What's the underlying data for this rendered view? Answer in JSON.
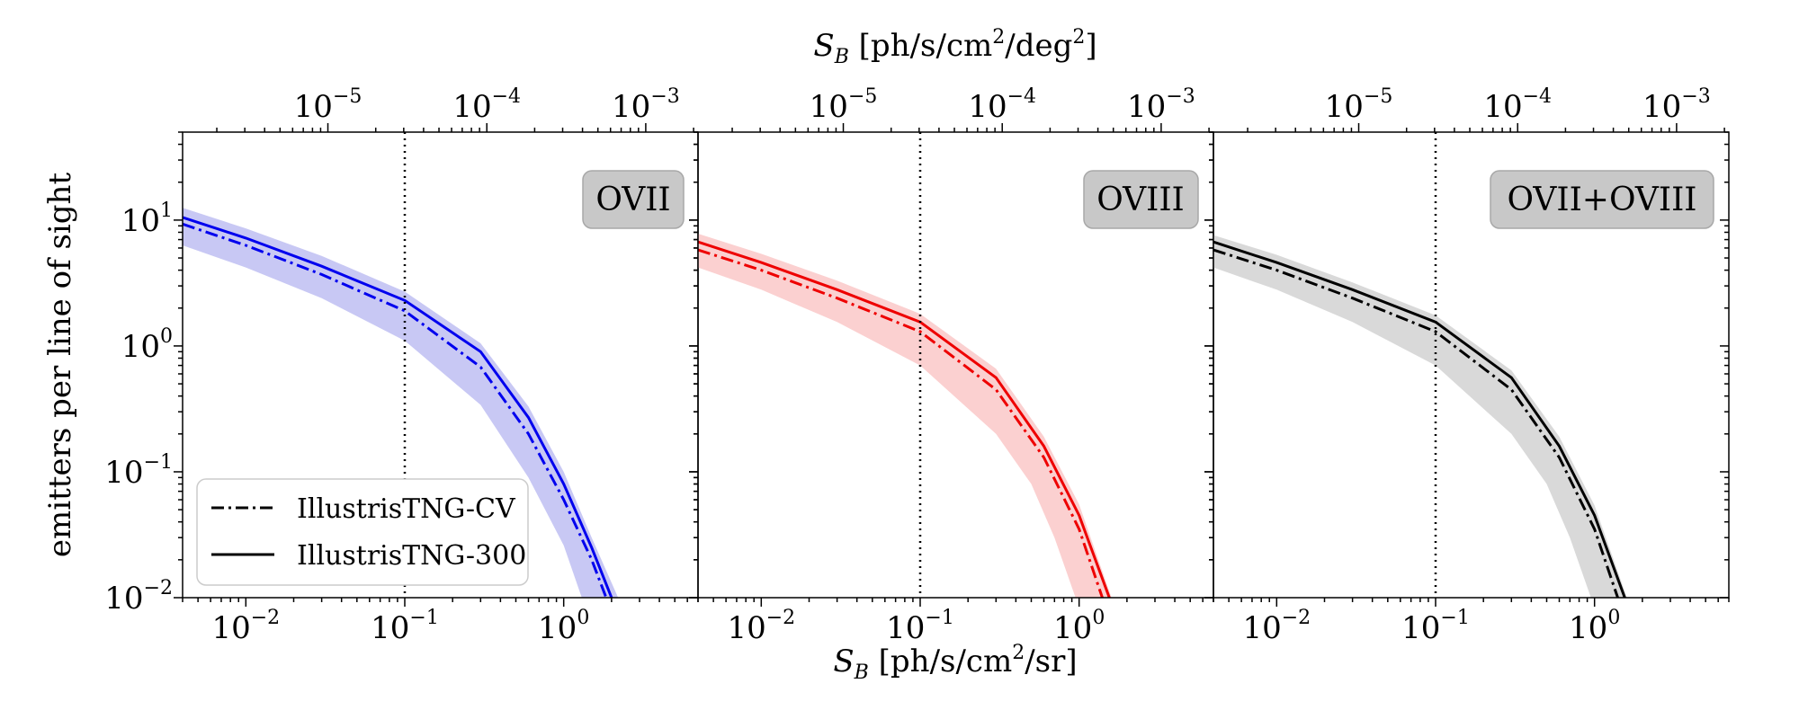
{
  "chart_data": {
    "type": "line",
    "y_axis": {
      "label": "emitters per line of sight",
      "scale": "log",
      "ylim": [
        0.01,
        50
      ],
      "ticks": [
        {
          "base": "10",
          "exp": "1",
          "value": 10
        },
        {
          "base": "10",
          "exp": "0",
          "value": 1
        },
        {
          "base": "10",
          "exp": "−1",
          "value": 0.1
        },
        {
          "base": "10",
          "exp": "−2",
          "value": 0.01
        }
      ]
    },
    "x_axis_bottom": {
      "label_main": "S",
      "label_sub": "B",
      "label_unit_pre": " [ph/s/cm",
      "label_unit_sup": "2",
      "label_unit_post": "/sr]",
      "scale": "log",
      "xlim": [
        0.004,
        7
      ],
      "ticks": [
        {
          "base": "10",
          "exp": "−2",
          "value": 0.01
        },
        {
          "base": "10",
          "exp": "−1",
          "value": 0.1
        },
        {
          "base": "10",
          "exp": "0",
          "value": 1
        }
      ]
    },
    "x_axis_top": {
      "label_main": "S",
      "label_sub": "B",
      "label_unit_pre": " [ph/s/cm",
      "label_unit_sup": "2",
      "label_unit_mid": "/deg",
      "label_unit_sup2": "2",
      "label_unit_post": "]",
      "scale": "log",
      "conversion_factor_per_sr_to_per_deg2": 0.0003046,
      "ticks": [
        {
          "base": "10",
          "exp": "−5",
          "value": 1e-05
        },
        {
          "base": "10",
          "exp": "−4",
          "value": 0.0001
        },
        {
          "base": "10",
          "exp": "−3",
          "value": 0.001
        }
      ]
    },
    "vertical_line_x": 0.1,
    "legend": {
      "placement": "lower-left of first panel",
      "entries": [
        {
          "label": "IllustrisTNG-CV",
          "style": "dashdot"
        },
        {
          "label": "IllustrisTNG-300",
          "style": "solid"
        }
      ]
    },
    "panels": [
      {
        "name": "OVII",
        "color": "#0000ee",
        "fill_color": "#c8c8f4",
        "series": [
          {
            "name": "IllustrisTNG-CV",
            "style": "dashdot",
            "x": [
              0.004,
              0.01,
              0.03,
              0.1,
              0.3,
              0.6,
              1.0,
              1.5,
              1.85
            ],
            "y": [
              9.3,
              6.3,
              3.7,
              1.9,
              0.68,
              0.2,
              0.06,
              0.02,
              0.01
            ]
          },
          {
            "name": "IllustrisTNG-300",
            "style": "solid",
            "x": [
              0.004,
              0.01,
              0.03,
              0.1,
              0.3,
              0.6,
              1.0,
              1.5,
              2.0
            ],
            "y": [
              10.5,
              7.2,
              4.3,
              2.3,
              0.9,
              0.27,
              0.08,
              0.025,
              0.01
            ]
          },
          {
            "name": "band_upper",
            "x": [
              0.004,
              0.01,
              0.03,
              0.1,
              0.3,
              0.6,
              1.0,
              1.5,
              2.2
            ],
            "y": [
              12.5,
              8.6,
              5.2,
              2.7,
              1.05,
              0.33,
              0.1,
              0.03,
              0.01
            ]
          },
          {
            "name": "band_lower",
            "x": [
              0.004,
              0.01,
              0.03,
              0.1,
              0.3,
              0.6,
              1.0,
              1.3
            ],
            "y": [
              6.3,
              4.2,
              2.4,
              1.1,
              0.34,
              0.09,
              0.026,
              0.01
            ]
          }
        ]
      },
      {
        "name": "OVIII",
        "color": "#ee0000",
        "fill_color": "#fbd0d0",
        "series": [
          {
            "name": "IllustrisTNG-CV",
            "style": "dashdot",
            "x": [
              0.004,
              0.01,
              0.03,
              0.1,
              0.3,
              0.6,
              1.0,
              1.4
            ],
            "y": [
              5.8,
              4.0,
              2.4,
              1.3,
              0.45,
              0.13,
              0.035,
              0.01
            ]
          },
          {
            "name": "IllustrisTNG-300",
            "style": "solid",
            "x": [
              0.004,
              0.01,
              0.03,
              0.1,
              0.3,
              0.6,
              1.0,
              1.55
            ],
            "y": [
              6.7,
              4.6,
              2.8,
              1.55,
              0.56,
              0.16,
              0.045,
              0.01
            ]
          },
          {
            "name": "band_upper",
            "x": [
              0.004,
              0.01,
              0.03,
              0.1,
              0.3,
              0.6,
              1.0,
              1.6
            ],
            "y": [
              7.8,
              5.4,
              3.3,
              1.8,
              0.66,
              0.19,
              0.055,
              0.01
            ]
          },
          {
            "name": "band_lower",
            "x": [
              0.004,
              0.01,
              0.03,
              0.1,
              0.3,
              0.5,
              0.7,
              0.95
            ],
            "y": [
              4.2,
              2.8,
              1.55,
              0.7,
              0.2,
              0.08,
              0.03,
              0.01
            ]
          }
        ]
      },
      {
        "name": "OVII+OVIII",
        "color": "#000000",
        "fill_color": "#d9d9d9",
        "series": [
          {
            "name": "IllustrisTNG-CV",
            "style": "dashdot",
            "x": [
              0.004,
              0.01,
              0.03,
              0.1,
              0.3,
              0.6,
              1.0,
              1.4
            ],
            "y": [
              5.8,
              4.0,
              2.4,
              1.3,
              0.45,
              0.13,
              0.035,
              0.01
            ]
          },
          {
            "name": "IllustrisTNG-300",
            "style": "solid",
            "x": [
              0.004,
              0.01,
              0.03,
              0.1,
              0.3,
              0.6,
              1.0,
              1.55
            ],
            "y": [
              6.7,
              4.6,
              2.8,
              1.55,
              0.56,
              0.16,
              0.045,
              0.01
            ]
          },
          {
            "name": "band_upper",
            "x": [
              0.004,
              0.01,
              0.03,
              0.1,
              0.3,
              0.6,
              1.0,
              1.6
            ],
            "y": [
              7.6,
              5.3,
              3.2,
              1.75,
              0.64,
              0.19,
              0.054,
              0.01
            ]
          },
          {
            "name": "band_lower",
            "x": [
              0.004,
              0.01,
              0.03,
              0.1,
              0.3,
              0.5,
              0.7,
              0.95
            ],
            "y": [
              4.2,
              2.8,
              1.55,
              0.7,
              0.2,
              0.08,
              0.03,
              0.01
            ]
          }
        ]
      }
    ]
  }
}
